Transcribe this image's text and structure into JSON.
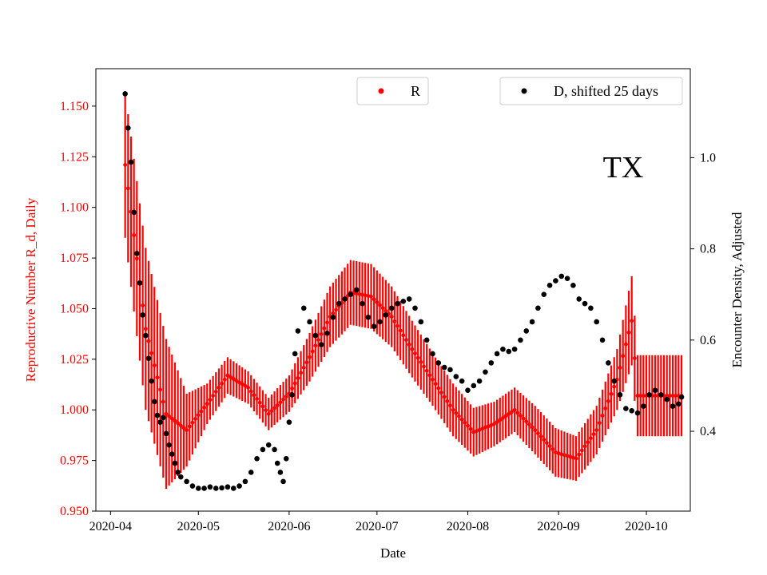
{
  "chart_data": {
    "type": "scatter",
    "x_axis": {
      "label": "Date",
      "range": [
        "2020-03-27",
        "2020-10-16"
      ],
      "ticks": [
        "2020-04-01",
        "2020-05-01",
        "2020-06-01",
        "2020-07-01",
        "2020-08-01",
        "2020-09-01",
        "2020-10-01"
      ],
      "tick_labels": [
        "2020-04",
        "2020-05",
        "2020-06",
        "2020-07",
        "2020-08",
        "2020-09",
        "2020-10"
      ]
    },
    "y_left": {
      "label": "Reproductive Number R_d, Daily",
      "color": "#ff0000",
      "range": [
        0.95,
        1.1685
      ],
      "ticks": [
        0.95,
        0.975,
        1.0,
        1.025,
        1.05,
        1.075,
        1.1,
        1.125,
        1.15
      ],
      "tick_labels": [
        "0.950",
        "0.975",
        "1.000",
        "1.025",
        "1.050",
        "1.075",
        "1.100",
        "1.125",
        "1.150"
      ]
    },
    "y_right": {
      "label": "Encounter Density, Adjusted",
      "color": "#000000",
      "range": [
        0.225,
        1.195
      ],
      "ticks": [
        0.4,
        0.6,
        0.8,
        1.0
      ],
      "tick_labels": [
        "0.4",
        "0.6",
        "0.8",
        "1.0"
      ]
    },
    "annotation": "TX",
    "legend": {
      "placement": "top-center and top-right"
    },
    "series": [
      {
        "name": "R",
        "axis": "left",
        "color": "#ff0000",
        "marker": "dot with vertical error bars",
        "x": [
          "2020-04-06",
          "2020-04-13",
          "2020-04-20",
          "2020-04-27",
          "2020-05-04",
          "2020-05-11",
          "2020-05-18",
          "2020-05-25",
          "2020-06-01",
          "2020-06-08",
          "2020-06-15",
          "2020-06-22",
          "2020-06-29",
          "2020-07-06",
          "2020-07-13",
          "2020-07-20",
          "2020-07-27",
          "2020-08-03",
          "2020-08-10",
          "2020-08-17",
          "2020-08-24",
          "2020-08-31",
          "2020-09-07",
          "2020-09-14",
          "2020-09-21",
          "2020-09-26",
          "2020-09-28",
          "2020-10-05",
          "2020-10-13"
        ],
        "y": [
          1.121,
          1.04,
          0.998,
          0.99,
          1.003,
          1.017,
          1.011,
          0.998,
          1.008,
          1.026,
          1.046,
          1.058,
          1.056,
          1.046,
          1.03,
          1.015,
          1.0,
          0.989,
          0.993,
          1.0,
          0.99,
          0.979,
          0.976,
          0.99,
          1.015,
          1.044,
          1.007,
          1.007,
          1.007
        ],
        "error": [
          0.036,
          0.04,
          0.037,
          0.018,
          0.01,
          0.009,
          0.008,
          0.008,
          0.009,
          0.012,
          0.015,
          0.016,
          0.016,
          0.015,
          0.014,
          0.013,
          0.013,
          0.012,
          0.011,
          0.011,
          0.012,
          0.012,
          0.011,
          0.012,
          0.015,
          0.022,
          0.02,
          0.02,
          0.02
        ]
      },
      {
        "name": "D, shifted 25 days",
        "axis": "right",
        "color": "#000000",
        "marker": "dot",
        "x": [
          "2020-04-06",
          "2020-04-07",
          "2020-04-08",
          "2020-04-09",
          "2020-04-10",
          "2020-04-11",
          "2020-04-12",
          "2020-04-13",
          "2020-04-14",
          "2020-04-15",
          "2020-04-16",
          "2020-04-17",
          "2020-04-18",
          "2020-04-19",
          "2020-04-20",
          "2020-04-21",
          "2020-04-22",
          "2020-04-23",
          "2020-04-24",
          "2020-04-25",
          "2020-04-27",
          "2020-04-29",
          "2020-05-01",
          "2020-05-03",
          "2020-05-05",
          "2020-05-07",
          "2020-05-09",
          "2020-05-11",
          "2020-05-13",
          "2020-05-15",
          "2020-05-17",
          "2020-05-19",
          "2020-05-21",
          "2020-05-23",
          "2020-05-25",
          "2020-05-27",
          "2020-05-28",
          "2020-05-29",
          "2020-05-30",
          "2020-05-31",
          "2020-06-01",
          "2020-06-02",
          "2020-06-03",
          "2020-06-04",
          "2020-06-06",
          "2020-06-08",
          "2020-06-10",
          "2020-06-12",
          "2020-06-14",
          "2020-06-16",
          "2020-06-18",
          "2020-06-20",
          "2020-06-22",
          "2020-06-24",
          "2020-06-26",
          "2020-06-28",
          "2020-06-30",
          "2020-07-02",
          "2020-07-04",
          "2020-07-06",
          "2020-07-08",
          "2020-07-10",
          "2020-07-12",
          "2020-07-14",
          "2020-07-16",
          "2020-07-18",
          "2020-07-20",
          "2020-07-22",
          "2020-07-24",
          "2020-07-26",
          "2020-07-28",
          "2020-07-30",
          "2020-08-01",
          "2020-08-03",
          "2020-08-05",
          "2020-08-07",
          "2020-08-09",
          "2020-08-11",
          "2020-08-13",
          "2020-08-15",
          "2020-08-17",
          "2020-08-19",
          "2020-08-21",
          "2020-08-23",
          "2020-08-25",
          "2020-08-27",
          "2020-08-29",
          "2020-08-31",
          "2020-09-02",
          "2020-09-04",
          "2020-09-06",
          "2020-09-08",
          "2020-09-10",
          "2020-09-12",
          "2020-09-14",
          "2020-09-16",
          "2020-09-18",
          "2020-09-20",
          "2020-09-22",
          "2020-09-24",
          "2020-09-26",
          "2020-09-28",
          "2020-09-30",
          "2020-10-02",
          "2020-10-04",
          "2020-10-06",
          "2020-10-08",
          "2020-10-10",
          "2020-10-12",
          "2020-10-13"
        ],
        "y": [
          1.14,
          1.065,
          0.99,
          0.88,
          0.79,
          0.725,
          0.655,
          0.61,
          0.56,
          0.51,
          0.465,
          0.435,
          0.42,
          0.43,
          0.395,
          0.37,
          0.35,
          0.33,
          0.31,
          0.3,
          0.29,
          0.28,
          0.275,
          0.275,
          0.278,
          0.275,
          0.276,
          0.278,
          0.275,
          0.28,
          0.29,
          0.31,
          0.34,
          0.36,
          0.37,
          0.36,
          0.33,
          0.31,
          0.29,
          0.34,
          0.42,
          0.48,
          0.57,
          0.62,
          0.67,
          0.64,
          0.61,
          0.59,
          0.615,
          0.65,
          0.68,
          0.69,
          0.7,
          0.71,
          0.68,
          0.65,
          0.63,
          0.64,
          0.655,
          0.67,
          0.68,
          0.685,
          0.69,
          0.67,
          0.64,
          0.6,
          0.57,
          0.55,
          0.54,
          0.535,
          0.52,
          0.51,
          0.49,
          0.5,
          0.51,
          0.53,
          0.55,
          0.57,
          0.58,
          0.575,
          0.58,
          0.6,
          0.62,
          0.64,
          0.67,
          0.7,
          0.72,
          0.73,
          0.74,
          0.735,
          0.72,
          0.69,
          0.68,
          0.67,
          0.64,
          0.6,
          0.55,
          0.51,
          0.48,
          0.45,
          0.445,
          0.44,
          0.455,
          0.48,
          0.49,
          0.48,
          0.47,
          0.455,
          0.46,
          0.475
        ]
      }
    ]
  }
}
